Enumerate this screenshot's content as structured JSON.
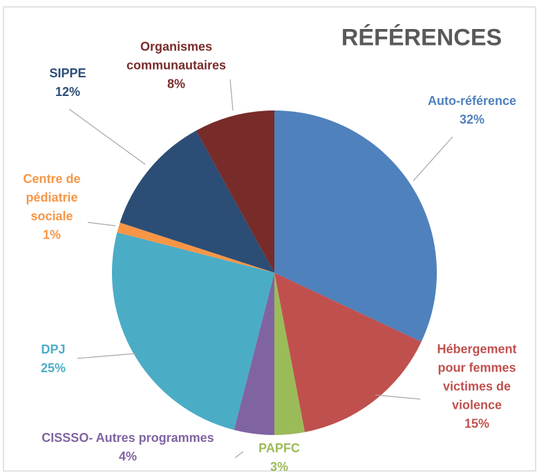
{
  "chart_data": {
    "type": "pie",
    "title": "RÉFÉRENCES",
    "categories": [
      "Auto-référence",
      "Hébergement pour femmes victimes de violence",
      "PAPFC",
      "CISSSO- Autres programmes",
      "DPJ",
      "Centre de pédiatrie sociale",
      "SIPPE",
      "Organismes communautaires"
    ],
    "values": [
      32,
      15,
      3,
      4,
      25,
      1,
      12,
      8
    ],
    "value_labels": [
      "32%",
      "15%",
      "3%",
      "4%",
      "25%",
      "1%",
      "12%",
      "8%"
    ],
    "colors": [
      "#4f81bd",
      "#c0504d",
      "#9bbb59",
      "#8064a2",
      "#4bacc6",
      "#f79646",
      "#2c4d75",
      "#772c2a"
    ]
  }
}
